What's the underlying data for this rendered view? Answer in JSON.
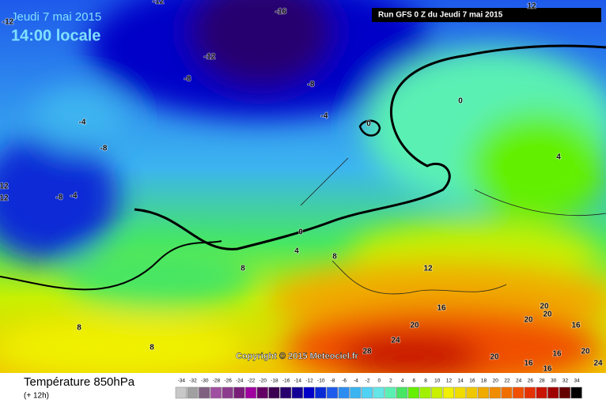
{
  "header": {
    "date": "Jeudi 7 mai 2015",
    "time": "14:00 locale",
    "run": "Run GFS 0 Z du Jeudi 7 mai 2015"
  },
  "copyright": "Copyright © 2015 Meteociel.fr",
  "footer": {
    "title": "Température 850hPa",
    "step": "(+ 12h)"
  },
  "contour_labels": [
    -12,
    -16,
    -12,
    -8,
    -8,
    -4,
    -4,
    -8,
    0,
    0,
    4,
    -8,
    -4,
    12,
    12,
    0,
    4,
    8,
    8,
    12,
    16,
    20,
    20,
    20,
    20,
    16,
    8,
    8,
    24,
    28,
    20,
    16,
    16,
    16,
    24,
    20,
    12,
    -12
  ],
  "scale": {
    "labels": [
      -34,
      -32,
      -30,
      -28,
      -26,
      -24,
      -22,
      -20,
      -18,
      -16,
      -14,
      -12,
      -10,
      -8,
      -6,
      -4,
      -2,
      0,
      2,
      4,
      6,
      8,
      10,
      12,
      14,
      16,
      18,
      20,
      22,
      24,
      26,
      28,
      30,
      32,
      34
    ],
    "colors": [
      "#c8c8c8",
      "#a0a0a0",
      "#806080",
      "#a050a0",
      "#8c3c8c",
      "#781e78",
      "#a000a0",
      "#640064",
      "#3c0050",
      "#28006e",
      "#140096",
      "#0000c8",
      "#0a2ad6",
      "#1e5aeb",
      "#2d8cf0",
      "#3cb4f0",
      "#50d2f5",
      "#64e6e6",
      "#5af0b4",
      "#46e664",
      "#64f000",
      "#a0f000",
      "#c8f000",
      "#f0f000",
      "#f0dc00",
      "#f0c800",
      "#f0aa00",
      "#f08c00",
      "#f06e00",
      "#f05000",
      "#e63200",
      "#c81400",
      "#a00000",
      "#640000",
      "#000000"
    ]
  }
}
